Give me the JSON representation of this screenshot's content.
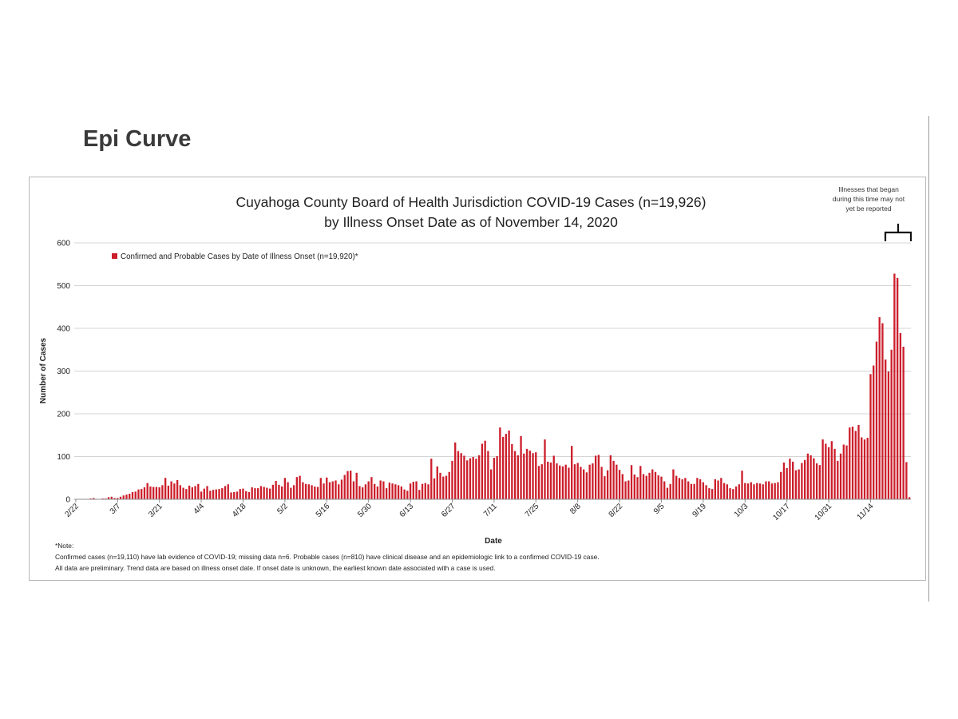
{
  "page": {
    "title": "Epi Curve"
  },
  "annotation": {
    "lines": [
      "Illnesses that began",
      "during this time may not",
      "yet be reported"
    ]
  },
  "notes": {
    "heading": "*Note:",
    "line1": "Confirmed cases (n=19,110)  have lab evidence of COVID-19; missing data n=6.  Probable cases (n=810) have clinical disease and an epidemiologic link to a confirmed COVID-19 case.",
    "line2": "All data are preliminary. Trend data are based on illness onset date. If onset date is unknown, the earliest known date associated with a case is used."
  },
  "colors": {
    "bar": "#cc1e2b",
    "grid": "#d4d4d4",
    "axis": "#8c8c8c",
    "text": "#222222"
  },
  "chart_data": {
    "type": "bar",
    "title": "Cuyahoga County Board of Health Jurisdiction COVID-19 Cases (n=19,926)",
    "subtitle": "by Illness Onset Date as of November 14, 2020",
    "xlabel": "Date",
    "ylabel": "Number of Cases",
    "ylim": [
      0,
      600
    ],
    "yticks": [
      0,
      100,
      200,
      300,
      400,
      500,
      600
    ],
    "grid": true,
    "legend": {
      "position": "top-left",
      "entries": [
        "Confirmed and Probable Cases by Date of Illness Onset (n=19,920)*"
      ]
    },
    "start_date": "2/22",
    "end_date": "11/14",
    "tick_labels": [
      "2/22",
      "3/7",
      "3/21",
      "4/4",
      "4/18",
      "5/2",
      "5/16",
      "5/30",
      "6/13",
      "6/27",
      "7/11",
      "7/25",
      "8/8",
      "8/22",
      "9/5",
      "9/19",
      "10/3",
      "10/17",
      "10/31",
      "11/14"
    ],
    "tick_day_index": [
      0,
      14,
      28,
      42,
      56,
      70,
      84,
      98,
      112,
      126,
      140,
      154,
      168,
      182,
      196,
      210,
      224,
      238,
      252,
      266
    ],
    "series": [
      {
        "name": "Confirmed and Probable Cases by Date of Illness Onset (n=19,920)*",
        "values": [
          0,
          0,
          0,
          0,
          1,
          2,
          3,
          1,
          0,
          2,
          2,
          5,
          6,
          3,
          3,
          6,
          9,
          11,
          13,
          17,
          18,
          23,
          24,
          28,
          38,
          30,
          29,
          29,
          28,
          33,
          50,
          32,
          42,
          37,
          45,
          33,
          27,
          24,
          32,
          28,
          31,
          36,
          18,
          25,
          31,
          20,
          22,
          23,
          24,
          26,
          31,
          35,
          16,
          17,
          18,
          24,
          25,
          19,
          17,
          28,
          26,
          26,
          31,
          29,
          27,
          25,
          34,
          43,
          34,
          30,
          50,
          40,
          27,
          33,
          52,
          55,
          40,
          36,
          35,
          33,
          30,
          29,
          50,
          37,
          51,
          40,
          42,
          44,
          35,
          46,
          57,
          66,
          67,
          42,
          62,
          31,
          28,
          35,
          42,
          52,
          36,
          30,
          44,
          42,
          26,
          39,
          37,
          35,
          33,
          30,
          23,
          20,
          37,
          41,
          42,
          22,
          36,
          38,
          35,
          95,
          49,
          77,
          62,
          53,
          55,
          64,
          90,
          133,
          113,
          108,
          102,
          91,
          96,
          99,
          95,
          103,
          130,
          137,
          113,
          70,
          97,
          101,
          168,
          146,
          153,
          161,
          129,
          113,
          103,
          148,
          107,
          118,
          114,
          108,
          110,
          78,
          82,
          140,
          88,
          86,
          102,
          84,
          79,
          77,
          81,
          74,
          125,
          82,
          85,
          76,
          70,
          63,
          81,
          84,
          102,
          104,
          76,
          54,
          68,
          103,
          90,
          81,
          69,
          59,
          42,
          44,
          80,
          58,
          52,
          78,
          59,
          55,
          62,
          70,
          64,
          56,
          53,
          42,
          27,
          36,
          70,
          55,
          50,
          47,
          50,
          42,
          36,
          36,
          50,
          47,
          40,
          33,
          26,
          24,
          47,
          44,
          50,
          38,
          35,
          26,
          24,
          30,
          35,
          67,
          38,
          37,
          40,
          35,
          38,
          37,
          35,
          42,
          42,
          37,
          38,
          40,
          64,
          86,
          73,
          95,
          88,
          68,
          70,
          85,
          92,
          107,
          103,
          96,
          84,
          80,
          140,
          130,
          122,
          136,
          118,
          90,
          107,
          128,
          126,
          168,
          170,
          160,
          174,
          145,
          140,
          144,
          293,
          313,
          369,
          426,
          412,
          327,
          299,
          350,
          528,
          518,
          389,
          357,
          87,
          5
        ]
      }
    ]
  }
}
